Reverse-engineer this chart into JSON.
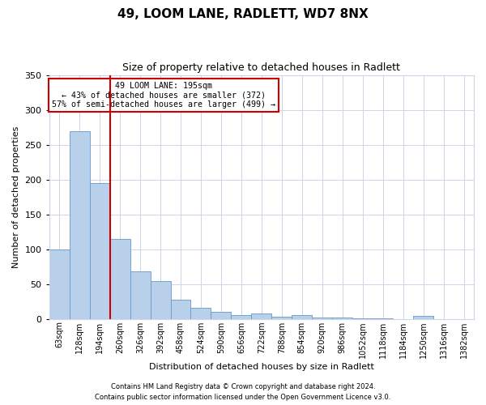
{
  "title": "49, LOOM LANE, RADLETT, WD7 8NX",
  "subtitle": "Size of property relative to detached houses in Radlett",
  "xlabel": "Distribution of detached houses by size in Radlett",
  "ylabel": "Number of detached properties",
  "bin_labels": [
    "63sqm",
    "128sqm",
    "194sqm",
    "260sqm",
    "326sqm",
    "392sqm",
    "458sqm",
    "524sqm",
    "590sqm",
    "656sqm",
    "722sqm",
    "788sqm",
    "854sqm",
    "920sqm",
    "986sqm",
    "1052sqm",
    "1118sqm",
    "1184sqm",
    "1250sqm",
    "1316sqm",
    "1382sqm"
  ],
  "bin_values": [
    100,
    270,
    195,
    115,
    68,
    54,
    27,
    16,
    10,
    5,
    8,
    3,
    5,
    2,
    2,
    1,
    1,
    0,
    4,
    0,
    0
  ],
  "bar_color": "#b8d0ea",
  "bar_edge_color": "#6699cc",
  "vline_color": "#cc0000",
  "vline_bin_index": 2,
  "annotation_line1": "49 LOOM LANE: 195sqm",
  "annotation_line2": "← 43% of detached houses are smaller (372)",
  "annotation_line3": "57% of semi-detached houses are larger (499) →",
  "annotation_box_color": "#cc0000",
  "ylim": [
    0,
    350
  ],
  "yticks": [
    0,
    50,
    100,
    150,
    200,
    250,
    300,
    350
  ],
  "footnote1": "Contains HM Land Registry data © Crown copyright and database right 2024.",
  "footnote2": "Contains public sector information licensed under the Open Government Licence v3.0.",
  "bg_color": "#ffffff",
  "grid_color": "#ccd6e8",
  "title_fontsize": 11,
  "subtitle_fontsize": 9,
  "ylabel_fontsize": 8,
  "xlabel_fontsize": 8,
  "tick_fontsize": 7,
  "footnote_fontsize": 6
}
